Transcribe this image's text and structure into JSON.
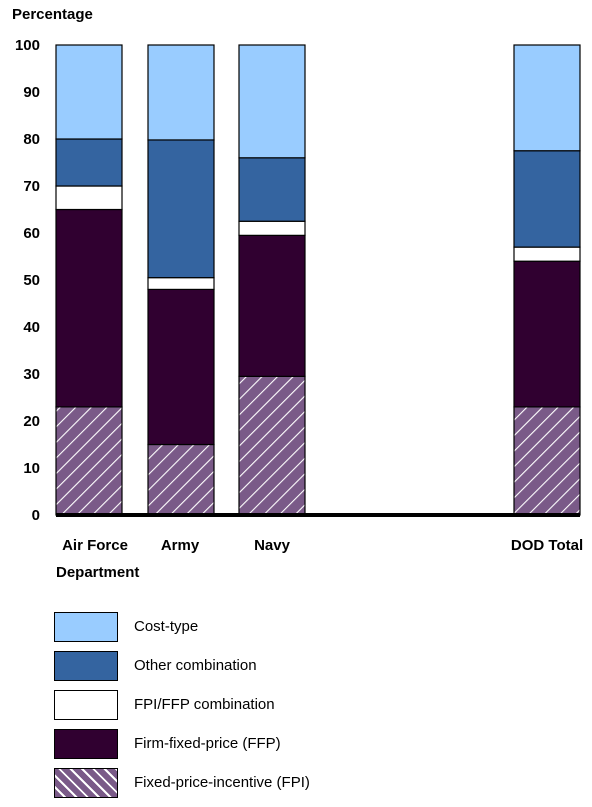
{
  "chart_data": {
    "type": "bar",
    "stacked": true,
    "ylabel": "Percentage",
    "xlabel": "Department",
    "ylim": [
      0,
      100
    ],
    "yticks": [
      0,
      10,
      20,
      30,
      40,
      50,
      60,
      70,
      80,
      90,
      100
    ],
    "categories": [
      "Air Force",
      "Army",
      "Navy",
      "DOD Total"
    ],
    "series": [
      {
        "name": "Fixed-price-incentive (FPI)",
        "color": "#7a5a88",
        "pattern": "diagonal-hatch",
        "values": [
          23,
          15,
          29.5,
          23
        ]
      },
      {
        "name": "Firm-fixed-price (FFP)",
        "color": "#300030",
        "values": [
          42,
          33,
          30,
          31
        ]
      },
      {
        "name": "FPI/FFP combination",
        "color": "#ffffff",
        "values": [
          5,
          2.5,
          3,
          3
        ]
      },
      {
        "name": "Other combination",
        "color": "#3464a0",
        "values": [
          10,
          29.3,
          13.5,
          20.5
        ]
      },
      {
        "name": "Cost-type",
        "color": "#99ccff",
        "values": [
          20,
          20.2,
          24,
          22.5
        ]
      }
    ],
    "legend": {
      "position": "bottom",
      "order": [
        "Cost-type",
        "Other combination",
        "FPI/FFP combination",
        "Firm-fixed-price (FFP)",
        "Fixed-price-incentive (FPI)"
      ]
    },
    "grid": false
  }
}
